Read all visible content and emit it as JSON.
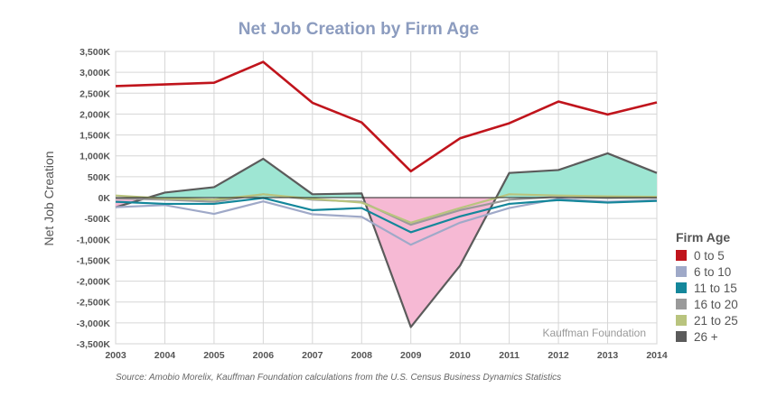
{
  "chart_data": {
    "type": "line",
    "title": "Net Job Creation by Firm Age",
    "ylabel": "Net Job Creation",
    "xlabel": "",
    "ylim": [
      -3500,
      3500
    ],
    "x": [
      "2003",
      "2004",
      "2005",
      "2006",
      "2007",
      "2008",
      "2009",
      "2010",
      "2011",
      "2012",
      "2013",
      "2014"
    ],
    "y_ticks": [
      3500,
      3000,
      2500,
      2000,
      1500,
      1000,
      500,
      0,
      -500,
      -1000,
      -1500,
      -2000,
      -2500,
      -3000,
      -3500
    ],
    "y_tick_labels": [
      "3,500K",
      "3,000K",
      "2,500K",
      "2,000K",
      "1,500K",
      "1,000K",
      "500K",
      "0K",
      "-500K",
      "-1,000K",
      "-1,500K",
      "-2,000K",
      "-2,500K",
      "-3,000K",
      "-3,500K"
    ],
    "grid": true,
    "legend_title": "Firm Age",
    "legend_position": "right",
    "series": [
      {
        "name": "0 to 5",
        "color": "#c0141c",
        "values": [
          2670,
          2710,
          2750,
          3250,
          2270,
          1800,
          630,
          1420,
          1780,
          2300,
          1990,
          2280
        ]
      },
      {
        "name": "6 to 10",
        "color": "#9fa9c8",
        "values": [
          -230,
          -180,
          -390,
          -90,
          -400,
          -460,
          -1130,
          -600,
          -250,
          -30,
          -100,
          -60
        ]
      },
      {
        "name": "11 to 15",
        "color": "#14879b",
        "values": [
          -100,
          -150,
          -150,
          -10,
          -300,
          -250,
          -830,
          -450,
          -150,
          -60,
          -120,
          -80
        ]
      },
      {
        "name": "16 to 20",
        "color": "#9a9a9a",
        "values": [
          -20,
          -50,
          -100,
          80,
          -50,
          -100,
          -650,
          -300,
          -50,
          20,
          -10,
          0
        ]
      },
      {
        "name": "21 to 25",
        "color": "#b9c47e",
        "values": [
          50,
          -20,
          -50,
          80,
          -30,
          -120,
          -600,
          -250,
          80,
          50,
          30,
          20
        ]
      },
      {
        "name": "26 +",
        "color": "#5b5b5b",
        "values": [
          -230,
          120,
          250,
          930,
          80,
          100,
          -3100,
          -1630,
          590,
          660,
          1060,
          590
        ]
      }
    ],
    "watermark": "Kauffman Foundation"
  },
  "fill_colors": {
    "positive": "#9ee6d3",
    "negative": "#f6b9d4"
  },
  "source": "Source: Amobio Morelix, Kauffman Foundation calculations from the U.S. Census Business Dynamics Statistics"
}
